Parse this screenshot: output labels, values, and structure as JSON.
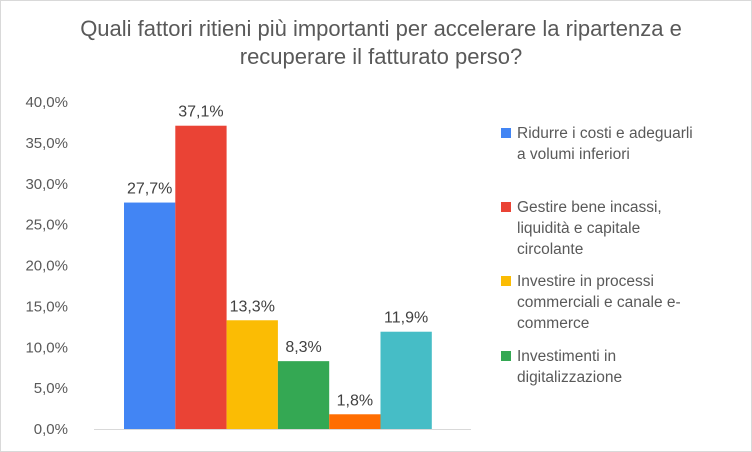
{
  "chart_data": {
    "type": "bar",
    "title": "Quali fattori ritieni più importanti per accelerare la ripartenza e recuperare il fatturato perso?",
    "ylim": [
      0,
      40
    ],
    "yticks": [
      "0,0%",
      "5,0%",
      "10,0%",
      "15,0%",
      "20,0%",
      "25,0%",
      "30,0%",
      "35,0%",
      "40,0%"
    ],
    "grid": false,
    "legend_position": "right",
    "series": [
      {
        "name": "Ridurre i costi e adeguarli a volumi inferiori",
        "value": 27.7,
        "label": "27,7%",
        "color": "#4285F4"
      },
      {
        "name": "Gestire bene incassi, liquidità e capitale circolante",
        "value": 37.1,
        "label": "37,1%",
        "color": "#EA4335"
      },
      {
        "name": "Investire in processi commerciali e canale e-commerce",
        "value": 13.3,
        "label": "13,3%",
        "color": "#FBBC04"
      },
      {
        "name": "Investimenti in digitalizzazione",
        "value": 8.3,
        "label": "8,3%",
        "color": "#34A853"
      },
      {
        "name": "",
        "value": 1.8,
        "label": "1,8%",
        "color": "#FF6D01"
      },
      {
        "name": "",
        "value": 11.9,
        "label": "11,9%",
        "color": "#46BDC6"
      }
    ]
  },
  "legend_lines": [
    [
      "Ridurre i costi e adeguarli",
      "a volumi inferiori"
    ],
    [
      "Gestire bene incassi,",
      "liquidità e capitale",
      "circolante"
    ],
    [
      "Investire in processi",
      "commerciali e canale e-",
      "commerce"
    ],
    [
      "Investimenti in",
      "digitalizzazione"
    ]
  ]
}
